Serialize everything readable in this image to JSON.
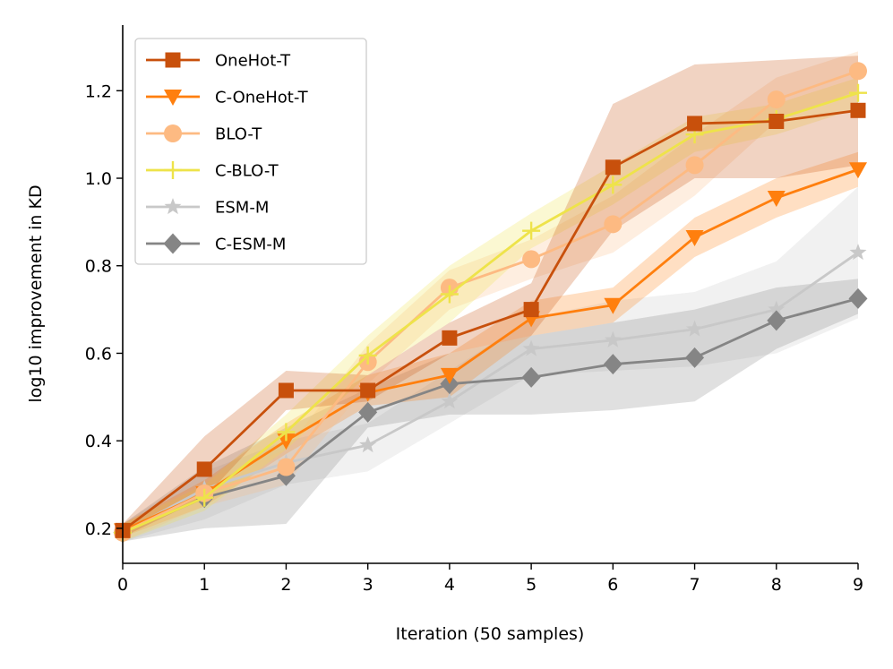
{
  "chart_data": {
    "type": "line",
    "title": "",
    "xlabel": "Iteration (50 samples)",
    "ylabel": "log10 improvement in KD",
    "xlim": [
      0,
      9
    ],
    "ylim": [
      0.12,
      1.35
    ],
    "x": [
      0,
      1,
      2,
      3,
      4,
      5,
      6,
      7,
      8,
      9
    ],
    "xticks": [
      "0",
      "1",
      "2",
      "3",
      "4",
      "5",
      "6",
      "7",
      "8",
      "9"
    ],
    "yticks": [
      "0.2",
      "0.4",
      "0.6",
      "0.8",
      "1.0",
      "1.2"
    ],
    "legend_position": "top-left",
    "series": [
      {
        "name": "ESM-M",
        "color": "#c8c8c8",
        "marker": "star",
        "values": [
          0.19,
          0.29,
          0.35,
          0.39,
          0.49,
          0.61,
          0.63,
          0.655,
          0.7,
          0.83
        ],
        "lower": [
          0.17,
          0.22,
          0.3,
          0.33,
          0.44,
          0.55,
          0.56,
          0.57,
          0.6,
          0.68
        ],
        "upper": [
          0.21,
          0.33,
          0.4,
          0.44,
          0.56,
          0.68,
          0.72,
          0.74,
          0.81,
          0.98
        ]
      },
      {
        "name": "C-ESM-M",
        "color": "#858585",
        "marker": "diamond",
        "values": [
          0.19,
          0.27,
          0.32,
          0.465,
          0.53,
          0.545,
          0.575,
          0.59,
          0.675,
          0.725
        ],
        "lower": [
          0.17,
          0.2,
          0.21,
          0.43,
          0.46,
          0.46,
          0.47,
          0.49,
          0.61,
          0.69
        ],
        "upper": [
          0.21,
          0.34,
          0.43,
          0.52,
          0.6,
          0.64,
          0.67,
          0.7,
          0.75,
          0.77
        ]
      },
      {
        "name": "C-OneHot-T",
        "color": "#ff7f0e",
        "marker": "triangle-down",
        "values": [
          0.195,
          0.28,
          0.4,
          0.51,
          0.55,
          0.68,
          0.71,
          0.865,
          0.955,
          1.02
        ],
        "lower": [
          0.18,
          0.25,
          0.37,
          0.48,
          0.5,
          0.64,
          0.67,
          0.82,
          0.91,
          0.98
        ],
        "upper": [
          0.21,
          0.31,
          0.44,
          0.55,
          0.6,
          0.72,
          0.75,
          0.91,
          1.0,
          1.06
        ]
      },
      {
        "name": "BLO-T",
        "color": "#fdba82",
        "marker": "circle",
        "values": [
          0.19,
          0.28,
          0.34,
          0.58,
          0.75,
          0.815,
          0.895,
          1.03,
          1.18,
          1.245
        ],
        "lower": [
          0.17,
          0.25,
          0.3,
          0.53,
          0.7,
          0.77,
          0.83,
          0.96,
          1.13,
          1.2
        ],
        "upper": [
          0.21,
          0.31,
          0.38,
          0.62,
          0.79,
          0.86,
          0.96,
          1.1,
          1.23,
          1.29
        ]
      },
      {
        "name": "C-BLO-T",
        "color": "#eee34a",
        "marker": "plus",
        "values": [
          0.19,
          0.27,
          0.42,
          0.595,
          0.735,
          0.88,
          0.985,
          1.1,
          1.135,
          1.195
        ],
        "lower": [
          0.17,
          0.24,
          0.38,
          0.55,
          0.67,
          0.84,
          0.94,
          1.06,
          1.1,
          1.16
        ],
        "upper": [
          0.21,
          0.3,
          0.46,
          0.64,
          0.8,
          0.92,
          1.03,
          1.14,
          1.17,
          1.23
        ]
      },
      {
        "name": "OneHot-T",
        "color": "#c8500c",
        "marker": "square",
        "values": [
          0.195,
          0.335,
          0.515,
          0.515,
          0.635,
          0.7,
          1.025,
          1.125,
          1.13,
          1.155
        ],
        "lower": [
          0.18,
          0.27,
          0.47,
          0.49,
          0.6,
          0.64,
          0.88,
          1.0,
          1.0,
          1.03
        ],
        "upper": [
          0.21,
          0.41,
          0.56,
          0.55,
          0.67,
          0.76,
          1.17,
          1.26,
          1.27,
          1.28
        ]
      }
    ],
    "legend": [
      {
        "name": "OneHot-T",
        "color": "#c8500c",
        "marker": "square"
      },
      {
        "name": "C-OneHot-T",
        "color": "#ff7f0e",
        "marker": "triangle-down"
      },
      {
        "name": "BLO-T",
        "color": "#fdba82",
        "marker": "circle"
      },
      {
        "name": "C-BLO-T",
        "color": "#eee34a",
        "marker": "plus"
      },
      {
        "name": "ESM-M",
        "color": "#c8c8c8",
        "marker": "star"
      },
      {
        "name": "C-ESM-M",
        "color": "#858585",
        "marker": "diamond"
      }
    ]
  }
}
